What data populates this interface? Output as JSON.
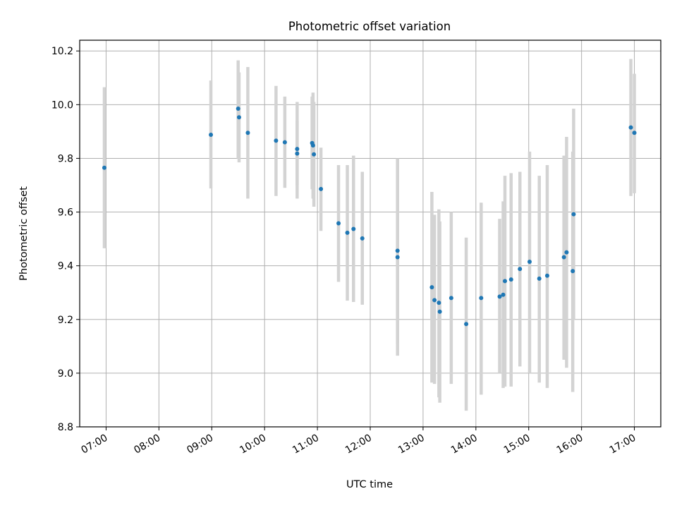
{
  "chart_data": {
    "type": "scatter",
    "title": "Photometric offset variation",
    "xlabel": "UTC time",
    "ylabel": "Photometric offset",
    "grid": true,
    "x_tick_labels": [
      "07:00",
      "08:00",
      "09:00",
      "10:00",
      "11:00",
      "12:00",
      "13:00",
      "14:00",
      "15:00",
      "16:00",
      "17:00"
    ],
    "y_tick_labels": [
      "8.8",
      "9.0",
      "9.2",
      "9.4",
      "9.6",
      "9.8",
      "10.0",
      "10.2"
    ],
    "y_ticks": [
      8.8,
      9.0,
      9.2,
      9.4,
      9.6,
      9.8,
      10.0,
      10.2
    ],
    "xlim": [
      "06:30",
      "17:30"
    ],
    "ylim": [
      8.8,
      10.24
    ],
    "point_color": "#1f77b4",
    "errorbar_color": "#d3d3d3",
    "points": [
      {
        "x": "06:58",
        "y": 9.765,
        "low": 9.465,
        "high": 10.065
      },
      {
        "x": "08:59",
        "y": 9.888,
        "low": 9.688,
        "high": 10.09
      },
      {
        "x": "09:30",
        "y": 9.985,
        "low": 9.8,
        "high": 10.165
      },
      {
        "x": "09:31",
        "y": 9.953,
        "low": 9.785,
        "high": 10.12
      },
      {
        "x": "09:41",
        "y": 9.895,
        "low": 9.65,
        "high": 10.14
      },
      {
        "x": "10:13",
        "y": 9.866,
        "low": 9.66,
        "high": 10.07
      },
      {
        "x": "10:23",
        "y": 9.86,
        "low": 9.69,
        "high": 10.03
      },
      {
        "x": "10:37",
        "y": 9.835,
        "low": 9.65,
        "high": 10.01
      },
      {
        "x": "10:37",
        "y": 9.818,
        "low": 9.7,
        "high": 9.94
      },
      {
        "x": "10:54",
        "y": 9.857,
        "low": 9.685,
        "high": 10.03
      },
      {
        "x": "10:55",
        "y": 9.848,
        "low": 9.65,
        "high": 10.045
      },
      {
        "x": "10:56",
        "y": 9.815,
        "low": 9.62,
        "high": 10.01
      },
      {
        "x": "11:04",
        "y": 9.686,
        "low": 9.53,
        "high": 9.84
      },
      {
        "x": "11:24",
        "y": 9.558,
        "low": 9.34,
        "high": 9.775
      },
      {
        "x": "11:34",
        "y": 9.523,
        "low": 9.27,
        "high": 9.775
      },
      {
        "x": "11:41",
        "y": 9.537,
        "low": 9.265,
        "high": 9.81
      },
      {
        "x": "11:51",
        "y": 9.502,
        "low": 9.255,
        "high": 9.75
      },
      {
        "x": "12:31",
        "y": 9.456,
        "low": 9.11,
        "high": 9.8
      },
      {
        "x": "12:31",
        "y": 9.432,
        "low": 9.065,
        "high": 9.8
      },
      {
        "x": "13:10",
        "y": 9.32,
        "low": 8.965,
        "high": 9.675
      },
      {
        "x": "13:13",
        "y": 9.272,
        "low": 8.96,
        "high": 9.59
      },
      {
        "x": "13:18",
        "y": 9.262,
        "low": 8.91,
        "high": 9.61
      },
      {
        "x": "13:19",
        "y": 9.229,
        "low": 8.89,
        "high": 9.565
      },
      {
        "x": "13:32",
        "y": 9.28,
        "low": 8.96,
        "high": 9.6
      },
      {
        "x": "13:49",
        "y": 9.183,
        "low": 8.86,
        "high": 9.505
      },
      {
        "x": "14:06",
        "y": 9.28,
        "low": 8.92,
        "high": 9.635
      },
      {
        "x": "14:27",
        "y": 9.285,
        "low": 9.0,
        "high": 9.575
      },
      {
        "x": "14:31",
        "y": 9.292,
        "low": 8.945,
        "high": 9.64
      },
      {
        "x": "14:33",
        "y": 9.343,
        "low": 8.95,
        "high": 9.735
      },
      {
        "x": "14:40",
        "y": 9.349,
        "low": 8.95,
        "high": 9.745
      },
      {
        "x": "14:50",
        "y": 9.388,
        "low": 9.025,
        "high": 9.75
      },
      {
        "x": "15:01",
        "y": 9.415,
        "low": 9.0,
        "high": 9.825
      },
      {
        "x": "15:12",
        "y": 9.352,
        "low": 8.965,
        "high": 9.735
      },
      {
        "x": "15:21",
        "y": 9.363,
        "low": 8.945,
        "high": 9.775
      },
      {
        "x": "15:40",
        "y": 9.432,
        "low": 9.05,
        "high": 9.81
      },
      {
        "x": "15:43",
        "y": 9.45,
        "low": 9.02,
        "high": 9.88
      },
      {
        "x": "15:50",
        "y": 9.38,
        "low": 8.93,
        "high": 9.825
      },
      {
        "x": "15:51",
        "y": 9.592,
        "low": 9.2,
        "high": 9.985
      },
      {
        "x": "16:56",
        "y": 9.915,
        "low": 9.66,
        "high": 10.17
      },
      {
        "x": "17:00",
        "y": 9.895,
        "low": 9.67,
        "high": 10.115
      }
    ]
  }
}
